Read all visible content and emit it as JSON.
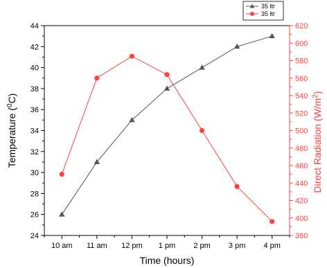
{
  "chart_data": {
    "type": "line",
    "title": "",
    "categories": [
      "10 am",
      "11 am",
      "12 pm",
      "1 pm",
      "2 pm",
      "3 pm",
      "4 pm"
    ],
    "xlabel": "Time (hours)",
    "ylabel_left": {
      "main": "Temperature (",
      "sup": "0",
      "tail": "C)"
    },
    "ylabel_right": {
      "main": "Direct Radiation (W/m",
      "sup": "2",
      "tail": ")"
    },
    "ylim_left": [
      24,
      44
    ],
    "yticks_left": [
      24,
      26,
      28,
      30,
      32,
      34,
      36,
      38,
      40,
      42,
      44
    ],
    "ylim_right": [
      380,
      620
    ],
    "yticks_right": [
      380,
      400,
      420,
      440,
      460,
      480,
      500,
      520,
      540,
      560,
      580,
      600,
      620
    ],
    "grid": false,
    "legend_position": "top-right",
    "series": [
      {
        "name": "35 ltr",
        "axis": "left",
        "marker": "triangle",
        "color": "#555555",
        "values": [
          26,
          31,
          35,
          38,
          40,
          42,
          43
        ]
      },
      {
        "name": "35 ltr",
        "axis": "right",
        "marker": "circle",
        "color": "#ff4040",
        "values": [
          450,
          560,
          585,
          564,
          500,
          436,
          396
        ]
      }
    ]
  }
}
